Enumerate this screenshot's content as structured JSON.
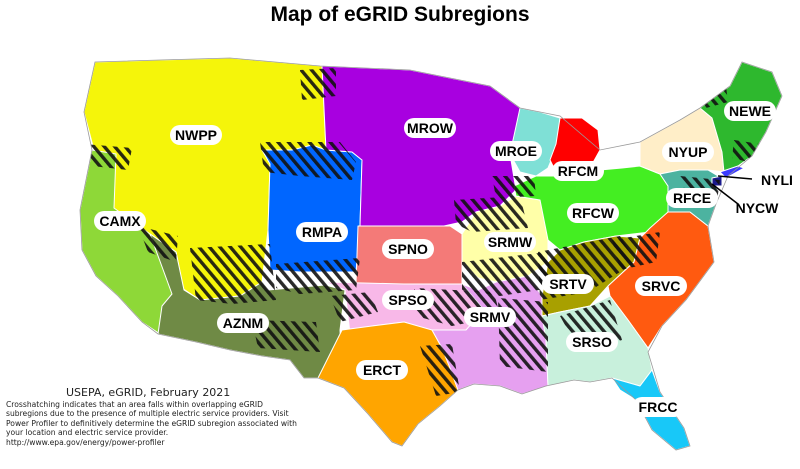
{
  "title": "Map of eGRID Subregions",
  "note": {
    "source": "USEPA, eGRID, February 2021",
    "body": "Crosshatching indicates that an area falls within overlapping eGRID subregions due to the presence of multiple electric service providers. Visit Power Profiler to definitively determine the eGRID subregion associated with your location and electric service provider.",
    "url": "http://www.epa.gov/energy/power-profiler"
  },
  "regions": [
    {
      "id": "NWPP",
      "label": "NWPP",
      "color": "#f5f50a"
    },
    {
      "id": "CAMX",
      "label": "CAMX",
      "color": "#8ed838"
    },
    {
      "id": "AZNM",
      "label": "AZNM",
      "color": "#6f8a45"
    },
    {
      "id": "RMPA",
      "label": "RMPA",
      "color": "#0066ff"
    },
    {
      "id": "MROW",
      "label": "MROW",
      "color": "#a800e0"
    },
    {
      "id": "SPNO",
      "label": "SPNO",
      "color": "#f47a78"
    },
    {
      "id": "SPSO",
      "label": "SPSO",
      "color": "#f8b8e8"
    },
    {
      "id": "ERCT",
      "label": "ERCT",
      "color": "#ffa500"
    },
    {
      "id": "SRMW",
      "label": "SRMW",
      "color": "#ffffa8"
    },
    {
      "id": "SRMV",
      "label": "SRMV",
      "color": "#e6a0f0"
    },
    {
      "id": "MROE",
      "label": "MROE",
      "color": "#7fe0d6"
    },
    {
      "id": "RFCM",
      "label": "RFCM",
      "color": "#ff0000"
    },
    {
      "id": "RFCW",
      "label": "RFCW",
      "color": "#44ee22"
    },
    {
      "id": "SRTV",
      "label": "SRTV",
      "color": "#a8a000"
    },
    {
      "id": "SRVC",
      "label": "SRVC",
      "color": "#ff5a10"
    },
    {
      "id": "SRSO",
      "label": "SRSO",
      "color": "#c8f0dc"
    },
    {
      "id": "FRCC",
      "label": "FRCC",
      "color": "#18c8f8"
    },
    {
      "id": "NYUP",
      "label": "NYUP",
      "color": "#ffeec8"
    },
    {
      "id": "NEWE",
      "label": "NEWE",
      "color": "#2eb82e"
    },
    {
      "id": "RFCE",
      "label": "RFCE",
      "color": "#4cb3a0"
    },
    {
      "id": "NYLI",
      "label": "NYLI",
      "color": "#3a3aff"
    },
    {
      "id": "NYCW",
      "label": "NYCW",
      "color": "#1a1a8c"
    }
  ]
}
